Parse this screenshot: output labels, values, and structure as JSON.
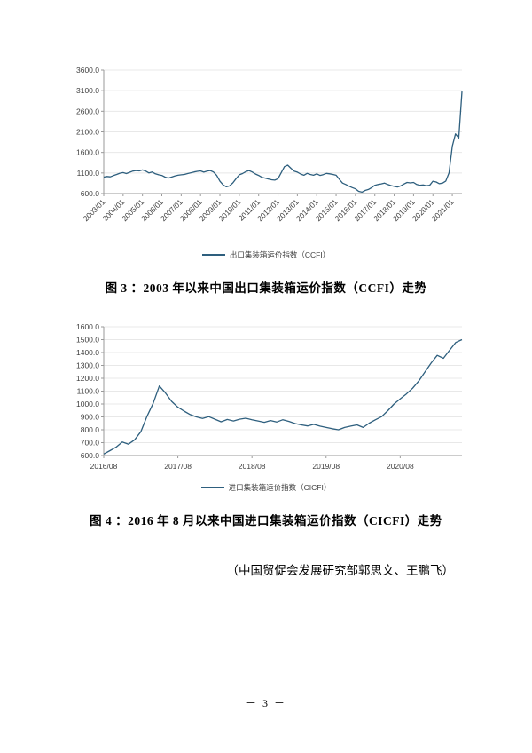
{
  "figures": [
    {
      "caption": "图 3 ：2003 年以来中国出口集装箱运价指数（CCFI）走势"
    },
    {
      "caption": "图 4 ：2016 年 8 月以来中国进口集装箱运价指数（CICFI）走势"
    }
  ],
  "attribution": "（中国贸促会发展研究部郭思文、王鹏飞）",
  "page_number": "－ 3 －",
  "chart_data": [
    {
      "type": "line",
      "title": "2003 年以来中国出口集装箱运价指数（CCFI）走势",
      "legend": "出口集装箱运价指数（CCFI）",
      "xlabel": "",
      "ylabel": "",
      "color": "#2e5f7e",
      "ylim": [
        600,
        3600
      ],
      "ytick_step": 500,
      "ytick_decimals": 1,
      "x_labels": [
        "2003/01",
        "2004/01",
        "2005/01",
        "2006/01",
        "2007/01",
        "2008/01",
        "2009/01",
        "2010/01",
        "2011/01",
        "2012/01",
        "2013/01",
        "2014/01",
        "2015/01",
        "2016/01",
        "2017/01",
        "2018/01",
        "2019/01",
        "2020/01",
        "2021/01"
      ],
      "x_tick_every": 6,
      "values": [
        1000,
        1015,
        1005,
        1035,
        1065,
        1095,
        1110,
        1085,
        1115,
        1145,
        1160,
        1150,
        1175,
        1145,
        1100,
        1125,
        1080,
        1055,
        1040,
        1000,
        975,
        1000,
        1025,
        1045,
        1055,
        1065,
        1085,
        1105,
        1125,
        1140,
        1150,
        1120,
        1145,
        1160,
        1125,
        1040,
        900,
        810,
        765,
        785,
        860,
        960,
        1055,
        1085,
        1130,
        1160,
        1125,
        1075,
        1040,
        995,
        975,
        955,
        935,
        925,
        960,
        1110,
        1255,
        1290,
        1215,
        1145,
        1120,
        1075,
        1045,
        1090,
        1065,
        1045,
        1080,
        1040,
        1060,
        1090,
        1080,
        1065,
        1045,
        945,
        855,
        820,
        780,
        745,
        715,
        655,
        635,
        675,
        700,
        745,
        800,
        820,
        835,
        855,
        820,
        795,
        775,
        760,
        785,
        830,
        870,
        860,
        870,
        820,
        800,
        810,
        790,
        800,
        900,
        880,
        840,
        855,
        905,
        1100,
        1750,
        2050,
        1950,
        3080
      ]
    },
    {
      "type": "line",
      "title": "2016 年 8 月以来中国进口集装箱运价指数（CICFI）走势",
      "legend": "进口集装箱运价指数（CICFI）",
      "xlabel": "",
      "ylabel": "",
      "color": "#2e5f7e",
      "ylim": [
        600,
        1600
      ],
      "ytick_step": 100,
      "ytick_decimals": 1,
      "x_labels": [
        "2016/08",
        "2017/08",
        "2018/08",
        "2019/08",
        "2020/08"
      ],
      "x_tick_every": 12,
      "values": [
        612,
        638,
        665,
        705,
        688,
        722,
        785,
        905,
        1005,
        1140,
        1085,
        1020,
        975,
        945,
        918,
        900,
        888,
        902,
        882,
        862,
        880,
        868,
        882,
        890,
        878,
        868,
        858,
        872,
        860,
        878,
        865,
        848,
        838,
        830,
        842,
        828,
        818,
        808,
        800,
        818,
        828,
        838,
        818,
        852,
        878,
        902,
        948,
        1000,
        1040,
        1078,
        1122,
        1178,
        1248,
        1318,
        1378,
        1355,
        1418,
        1478,
        1500
      ]
    }
  ]
}
